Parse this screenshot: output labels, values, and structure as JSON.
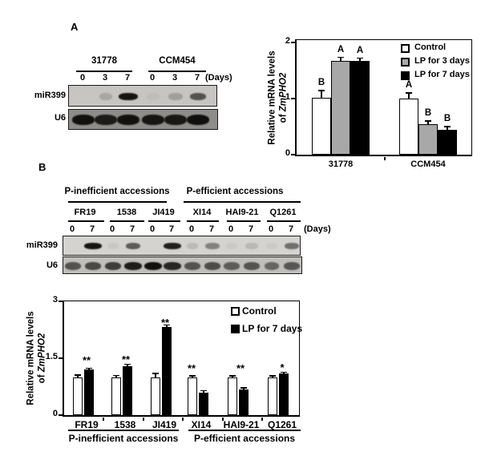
{
  "panels": {
    "a": {
      "label": "A",
      "gel": {
        "row_labels": [
          "miR399",
          "U6"
        ],
        "group_names": [
          "31778",
          "CCM454"
        ],
        "lane_days": [
          "0",
          "3",
          "7",
          "0",
          "3",
          "7"
        ],
        "days_caption": "(Days)",
        "mir399_band_intensity": [
          0.02,
          0.16,
          0.95,
          0.04,
          0.2,
          0.62
        ],
        "u6_band_intensity": [
          0.95,
          0.88,
          0.95,
          0.92,
          0.9,
          0.97
        ]
      }
    },
    "b": {
      "label": "B",
      "gel": {
        "group_headers": [
          "P-inefficient accessions",
          "P-efficient accessions"
        ],
        "accessions": [
          "FR19",
          "1538",
          "JI419",
          "XI14",
          "HAI9-21",
          "Q1261"
        ],
        "lane_days": [
          "0",
          "7",
          "0",
          "7",
          "0",
          "7",
          "0",
          "7",
          "0",
          "7",
          "0",
          "7"
        ],
        "days_caption": "(Days)",
        "row_labels": [
          "miR399",
          "U6"
        ],
        "mir399_band_intensity": [
          0,
          0.95,
          0.06,
          0.6,
          0.02,
          0.9,
          0.12,
          0.4,
          0.05,
          0.13,
          0.04,
          0.5
        ],
        "u6_band_intensity": [
          0.6,
          0.66,
          0.72,
          0.9,
          0.97,
          0.85,
          0.6,
          0.64,
          0.55,
          0.6,
          0.5,
          0.58
        ]
      }
    }
  },
  "colors": {
    "control_fill": "#ffffff",
    "lp3_fill": "#a8a8a8",
    "lp7_fill": "#000000",
    "axis": "#000000"
  },
  "chart_data": [
    {
      "type": "bar",
      "panel": "A",
      "title": "",
      "ylabel_lines": [
        [
          {
            "text": "Relative mRNA levels",
            "italic": false
          }
        ],
        [
          {
            "text": "of ",
            "italic": false
          },
          {
            "text": "ZmPHO2",
            "italic": true
          }
        ]
      ],
      "categories": [
        "31778",
        "CCM454"
      ],
      "series": [
        {
          "name": "Control",
          "fill": "#ffffff",
          "values": [
            1.02,
            1.0
          ],
          "errors": [
            0.12,
            0.1
          ],
          "letters": [
            "B",
            "A"
          ]
        },
        {
          "name": "LP for 3 days",
          "fill": "#a8a8a8",
          "values": [
            1.67,
            0.55
          ],
          "errors": [
            0.06,
            0.05
          ],
          "letters": [
            "A",
            "B"
          ]
        },
        {
          "name": "LP for 7 days",
          "fill": "#000000",
          "values": [
            1.67,
            0.45
          ],
          "errors": [
            0.05,
            0.05
          ],
          "letters": [
            "A",
            "B"
          ]
        }
      ],
      "ylim": [
        0,
        2
      ],
      "yticks": [
        0,
        1,
        2
      ],
      "legend_position": "top-right-inside",
      "grid": false
    },
    {
      "type": "bar",
      "panel": "B",
      "title": "",
      "ylabel_lines": [
        [
          {
            "text": "Relative mRNA levels",
            "italic": false
          }
        ],
        [
          {
            "text": "of ",
            "italic": false
          },
          {
            "text": "ZmPHO2",
            "italic": true
          }
        ]
      ],
      "categories": [
        "FR19",
        "1538",
        "JI419",
        "XI14",
        "HAI9-21",
        "Q1261"
      ],
      "category_groups": [
        {
          "label": "P-inefficient accessions",
          "span": [
            0,
            2
          ]
        },
        {
          "label": "P-efficient accessions",
          "span": [
            3,
            5
          ]
        }
      ],
      "series": [
        {
          "name": "Control",
          "fill": "#ffffff",
          "values": [
            1.0,
            1.0,
            1.0,
            1.0,
            1.0,
            1.0
          ],
          "errors": [
            0.05,
            0.04,
            0.09,
            0.03,
            0.03,
            0.03
          ]
        },
        {
          "name": "LP for 7 days",
          "fill": "#000000",
          "values": [
            1.2,
            1.3,
            2.33,
            0.6,
            0.67,
            1.1
          ],
          "errors": [
            0.03,
            0.04,
            0.04,
            0.04,
            0.04,
            0.03
          ]
        }
      ],
      "significance": [
        "**",
        "**",
        "**",
        "**",
        "**",
        "*"
      ],
      "ylim": [
        0,
        3
      ],
      "yticks": [
        0,
        1.5,
        3
      ],
      "legend_position": "top-right-inside",
      "grid": false
    }
  ]
}
